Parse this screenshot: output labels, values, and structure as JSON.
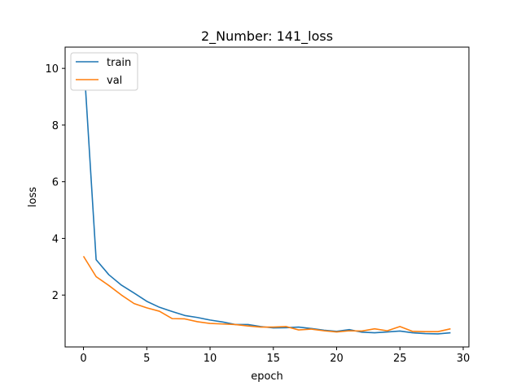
{
  "chart_data": {
    "type": "line",
    "title": "2_Number: 141_loss",
    "xlabel": "epoch",
    "ylabel": "loss",
    "xlim": [
      -1.45,
      30.45
    ],
    "ylim": [
      0.17,
      10.75
    ],
    "xticks": [
      0,
      5,
      10,
      15,
      20,
      25,
      30
    ],
    "yticks": [
      2,
      4,
      6,
      8,
      10
    ],
    "grid": false,
    "legend_position": "upper left",
    "x": [
      0,
      1,
      2,
      3,
      4,
      5,
      6,
      7,
      8,
      9,
      10,
      11,
      12,
      13,
      14,
      15,
      16,
      17,
      18,
      19,
      20,
      21,
      22,
      23,
      24,
      25,
      26,
      27,
      28,
      29
    ],
    "series": [
      {
        "name": "train",
        "color": "#1f77b4",
        "values": [
          10.45,
          3.25,
          2.72,
          2.35,
          2.07,
          1.78,
          1.57,
          1.42,
          1.28,
          1.21,
          1.12,
          1.05,
          0.96,
          0.96,
          0.89,
          0.84,
          0.85,
          0.87,
          0.82,
          0.76,
          0.72,
          0.78,
          0.69,
          0.67,
          0.7,
          0.73,
          0.67,
          0.64,
          0.63,
          0.67
        ]
      },
      {
        "name": "val",
        "color": "#ff7f0e",
        "values": [
          3.37,
          2.65,
          2.34,
          2.0,
          1.7,
          1.55,
          1.43,
          1.17,
          1.16,
          1.06,
          1.0,
          0.98,
          0.96,
          0.91,
          0.87,
          0.87,
          0.89,
          0.77,
          0.8,
          0.74,
          0.7,
          0.74,
          0.73,
          0.81,
          0.74,
          0.89,
          0.72,
          0.71,
          0.71,
          0.81
        ]
      }
    ]
  }
}
